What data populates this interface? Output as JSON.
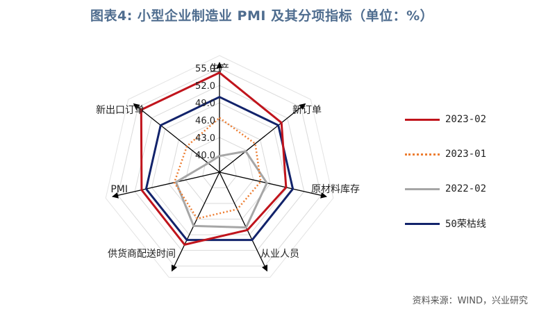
{
  "title": "图表4:  小型企业制造业 PMI 及其分项指标（单位：%）",
  "source": "资料来源：WIND，兴业研究",
  "chart_data": {
    "type": "radar",
    "axes": [
      "生产",
      "新订单",
      "原材料库存",
      "从业人员",
      "供货商配送时间",
      "PMI",
      "新出口订单"
    ],
    "radial_ticks": [
      40.0,
      43.0,
      46.0,
      49.0,
      52.0,
      55.0
    ],
    "radial_tick_labels": [
      "40.0",
      "43.0",
      "46.0",
      "49.0",
      "52.0",
      "55.0"
    ],
    "rlim": [
      37,
      55
    ],
    "series": [
      {
        "name": "2023-02",
        "values": [
          54.2,
          50.7,
          48.8,
          48.1,
          50.9,
          50.8,
          54.3
        ],
        "color": "#c0141c",
        "style": "solid"
      },
      {
        "name": "2023-01",
        "values": [
          46.4,
          44.9,
          44.3,
          44.1,
          45.9,
          45.0,
          44.2
        ],
        "color": "#ed7d31",
        "style": "dotted"
      },
      {
        "name": "2022-02",
        "values": [
          39.8,
          42.8,
          45.4,
          47.6,
          47.3,
          44.7,
          39.5
        ],
        "color": "#a6a6a6",
        "style": "solid"
      },
      {
        "name": "50荣枯线",
        "values": [
          50,
          50,
          50,
          50,
          50,
          50,
          50
        ],
        "color": "#12236b",
        "style": "solid"
      }
    ],
    "grid": true,
    "legend_position": "right"
  }
}
